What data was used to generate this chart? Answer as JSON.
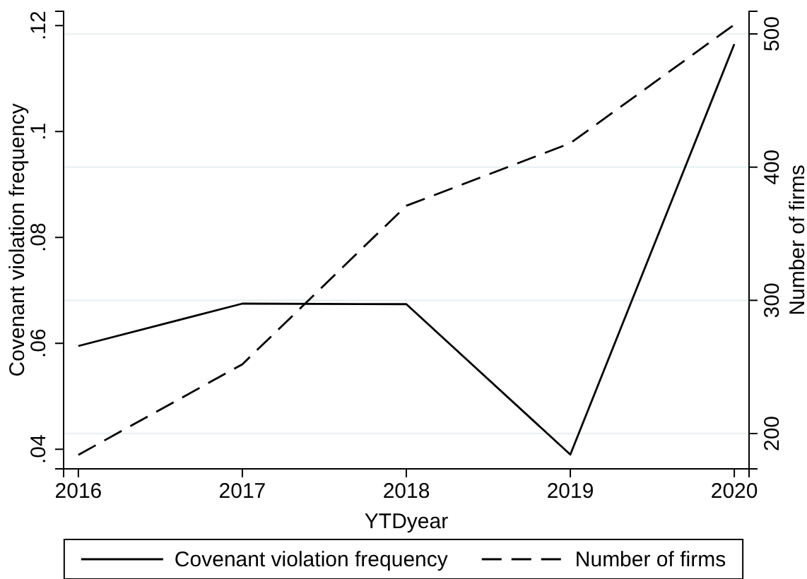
{
  "chart_data": {
    "type": "line",
    "xlabel": "YTDyear",
    "ylabel": "Covenant violation frequency",
    "y2label": "Number of firms",
    "x": [
      2016,
      2017,
      2018,
      2019,
      2020
    ],
    "series": [
      {
        "name": "Covenant violation frequency",
        "color": "#000000",
        "line_style": "solid",
        "values": [
          0.0595,
          0.0675,
          0.0674,
          0.039,
          0.1165
        ]
      },
      {
        "name": "Number of firms",
        "color": "#000000",
        "line_style": "dashed",
        "axis": "y2",
        "values": [
          184,
          252,
          371,
          418,
          507
        ]
      }
    ],
    "xlim": [
      2015.91,
      2020.09
    ],
    "xticks": [
      2016,
      2017,
      2018,
      2019,
      2020
    ],
    "ylim": [
      0.0363,
      0.1227
    ],
    "yticks": [
      {
        "value": 0.04,
        "label": ".04"
      },
      {
        "value": 0.06,
        "label": ".06"
      },
      {
        "value": 0.08,
        "label": ".08"
      },
      {
        "value": 0.1,
        "label": ".1"
      },
      {
        "value": 0.12,
        "label": ".12"
      }
    ],
    "y2lim": [
      173.5,
      517
    ],
    "y2ticks": [
      200,
      300,
      400,
      500
    ],
    "grid": "y",
    "legend": "bottom",
    "marker": "none"
  }
}
